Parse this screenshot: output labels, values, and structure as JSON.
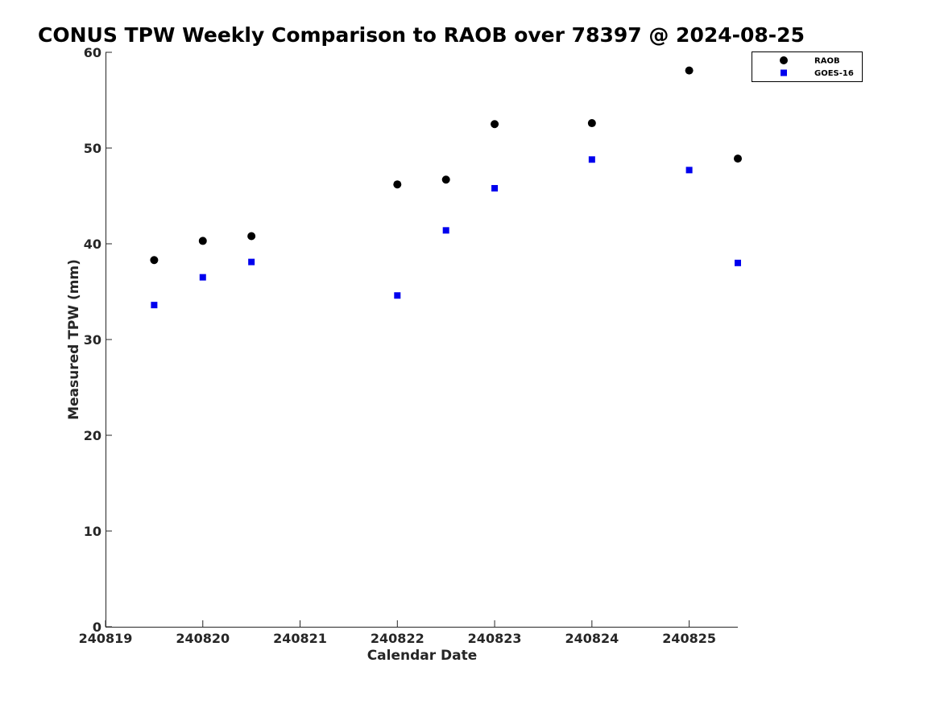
{
  "chart_data": {
    "type": "scatter",
    "title": "CONUS TPW Weekly Comparison to RAOB over 78397 @ 2024-08-25",
    "xlabel": "Calendar Date",
    "ylabel": "Measured TPW (mm)",
    "xlim": [
      240819,
      240825.5
    ],
    "ylim": [
      0,
      60
    ],
    "x_ticks": [
      240819,
      240820,
      240821,
      240822,
      240823,
      240824,
      240825
    ],
    "x_tick_labels": [
      "240819",
      "240820",
      "240821",
      "240822",
      "240823",
      "240824",
      "240825"
    ],
    "y_ticks": [
      0,
      10,
      20,
      30,
      40,
      50,
      60
    ],
    "y_tick_labels": [
      "0",
      "10",
      "20",
      "30",
      "40",
      "50",
      "60"
    ],
    "grid": false,
    "legend_position": "top-right",
    "series": [
      {
        "name": "RAOB",
        "marker": "circle",
        "color": "#000000",
        "x": [
          240819.5,
          240820,
          240820.5,
          240822,
          240822.5,
          240823,
          240824,
          240825,
          240825.5
        ],
        "y": [
          38.3,
          40.3,
          40.8,
          46.2,
          46.7,
          52.5,
          52.6,
          58.1,
          48.9
        ]
      },
      {
        "name": "GOES-16",
        "marker": "square",
        "color": "#0000ee",
        "x": [
          240819.5,
          240820,
          240820.5,
          240822,
          240822.5,
          240823,
          240824,
          240825,
          240825.5
        ],
        "y": [
          33.6,
          36.5,
          38.1,
          34.6,
          41.4,
          45.8,
          48.8,
          47.7,
          38.0
        ]
      }
    ]
  }
}
